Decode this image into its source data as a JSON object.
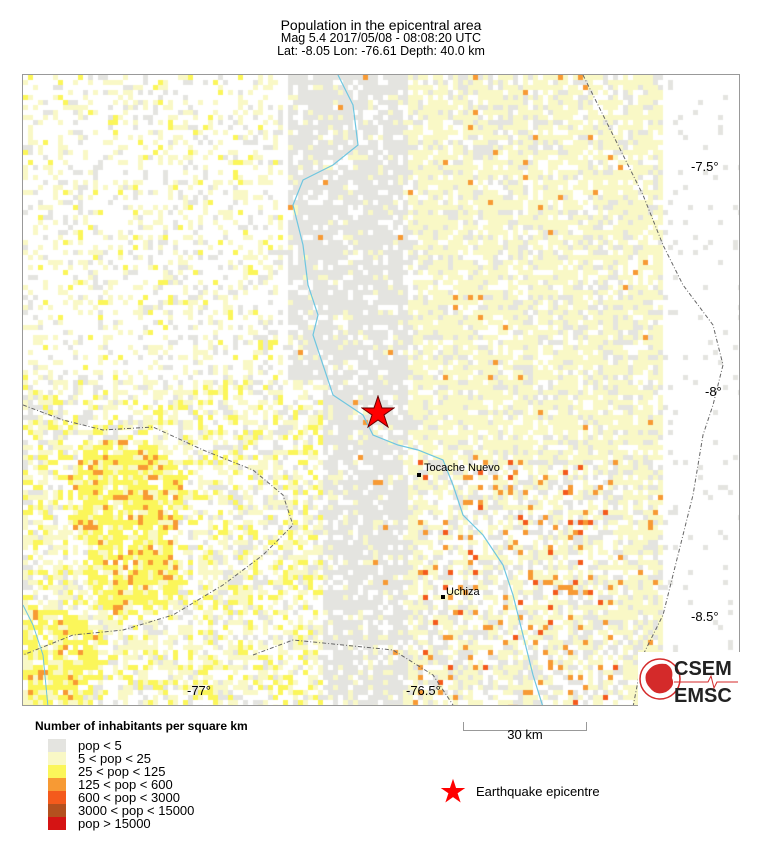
{
  "header": {
    "title": "Population in the epicentral area",
    "event_line": "Mag 5.4  2017/05/08 - 08:08:20 UTC",
    "location_line": "Lat: -8.05    Lon: -76.61     Depth:  40.0 km"
  },
  "map": {
    "lat_labels": [
      "-7.5°",
      "-8°",
      "-8.5°"
    ],
    "lon_labels": [
      "-77°",
      "-76.5°"
    ],
    "cities": [
      "Tocache Nuevo",
      "Uchiza"
    ],
    "epicentre_icon": "red-star-icon",
    "river_color": "#6ec6e0"
  },
  "legend": {
    "title": "Number of inhabitants per square km",
    "classes": [
      {
        "label": "pop < 5",
        "color": "#e4e4e0"
      },
      {
        "label": "5 < pop < 25",
        "color": "#f9f8c6"
      },
      {
        "label": "25 < pop < 125",
        "color": "#fbf65a"
      },
      {
        "label": "125 < pop < 600",
        "color": "#f79a34"
      },
      {
        "label": "600 < pop < 3000",
        "color": "#f45a1c"
      },
      {
        "label": "3000 < pop < 15000",
        "color": "#b4501e"
      },
      {
        "label": "pop > 15000",
        "color": "#d51414"
      }
    ],
    "epicentre_label": "Earthquake epicentre"
  },
  "scale_bar": {
    "label": "30 km"
  },
  "logo": {
    "text_top": "CSEM",
    "text_bottom": "EMSC",
    "color": "#d42a2a"
  }
}
